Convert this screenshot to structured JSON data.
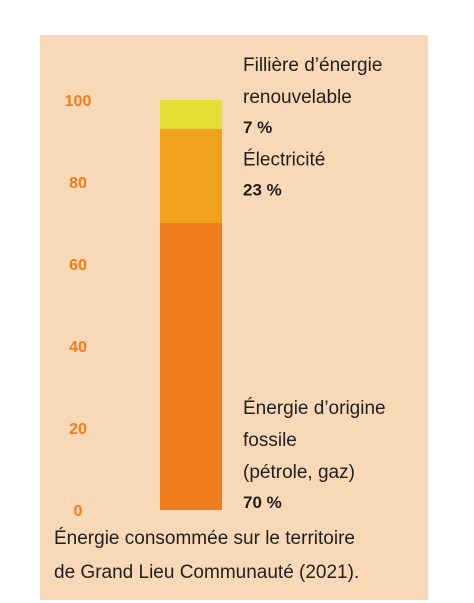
{
  "chart_data": {
    "type": "bar",
    "stacked": true,
    "ylim": [
      0,
      100
    ],
    "yticks": [
      "0",
      "20",
      "40",
      "60",
      "80",
      "100"
    ],
    "series": [
      {
        "label_lines": [
          "Énergie d’origine",
          "fossile",
          "(pétrole, gaz)"
        ],
        "value": 70,
        "value_label": "70 %",
        "color": "#f07d1c"
      },
      {
        "label_lines": [
          "Électricité"
        ],
        "value": 23,
        "value_label": "23 %",
        "color": "#f0a21e"
      },
      {
        "label_lines": [
          "Fillière d’énergie",
          "renouvelable"
        ],
        "value": 7,
        "value_label": "7 %",
        "color": "#e6e036"
      }
    ],
    "tick_color": "#f07d1c",
    "background_color": "#f9d8b8"
  },
  "caption": {
    "line1": "Énergie consommée sur le territoire",
    "line2": "de Grand Lieu Communauté (2021)."
  }
}
